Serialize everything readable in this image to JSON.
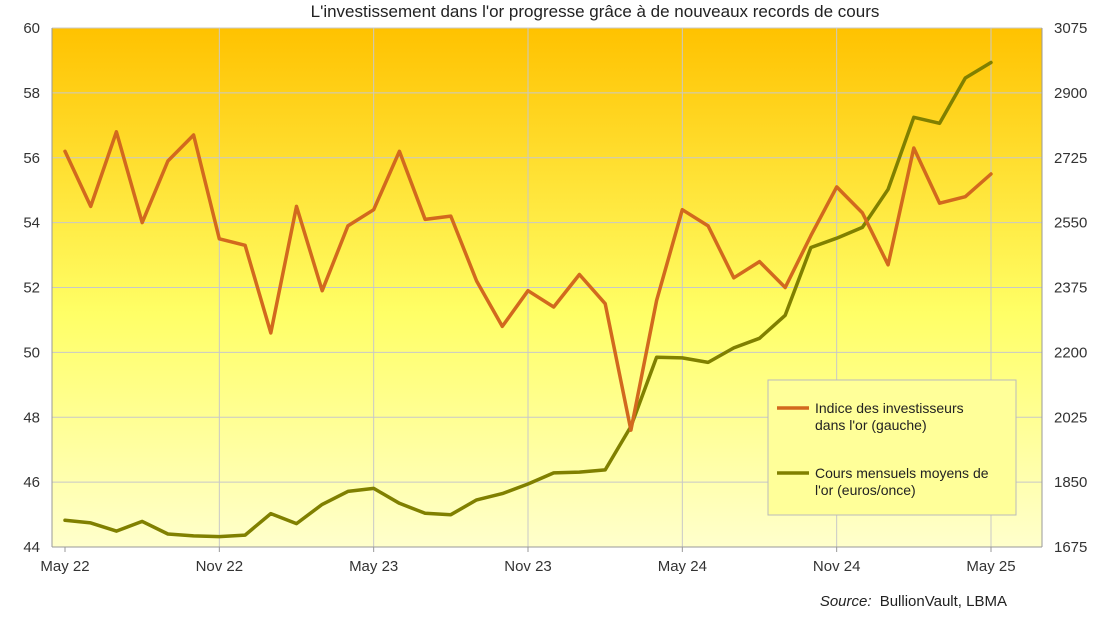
{
  "chart_data": {
    "type": "line",
    "title": "L'investissement dans l'or progresse grâce à de nouveaux records de cours",
    "source_label": "Source:",
    "source_text": "BullionVault, LBMA",
    "x_tick_labels": [
      "May 22",
      "Nov 22",
      "May 23",
      "Nov 23",
      "May 24",
      "Nov 24",
      "May 25"
    ],
    "x_start": "2022-05",
    "x_end": "2025-05",
    "y_left": {
      "range": [
        44,
        60
      ],
      "ticks": [
        44,
        46,
        48,
        50,
        52,
        54,
        56,
        58,
        60
      ]
    },
    "y_right": {
      "range": [
        1675,
        3075
      ],
      "ticks": [
        1675,
        1850,
        2025,
        2200,
        2375,
        2550,
        2725,
        2900,
        3075
      ]
    },
    "grid": true,
    "legend_position": "right",
    "series": [
      {
        "name": "Indice des investisseurs dans l'or (gauche)",
        "legend_lines": [
          "Indice des investisseurs",
          "dans l'or (gauche)"
        ],
        "axis": "left",
        "color": "#d2691e",
        "x": [
          "2022-05",
          "2022-06",
          "2022-07",
          "2022-08",
          "2022-09",
          "2022-10",
          "2022-11",
          "2022-12",
          "2023-01",
          "2023-02",
          "2023-03",
          "2023-04",
          "2023-05",
          "2023-06",
          "2023-07",
          "2023-08",
          "2023-09",
          "2023-10",
          "2023-11",
          "2023-12",
          "2024-01",
          "2024-02",
          "2024-03",
          "2024-04",
          "2024-05",
          "2024-06",
          "2024-07",
          "2024-08",
          "2024-09",
          "2024-10",
          "2024-11",
          "2024-12",
          "2025-01",
          "2025-02",
          "2025-03",
          "2025-04",
          "2025-05"
        ],
        "values": [
          56.2,
          54.5,
          56.8,
          54.0,
          55.9,
          56.7,
          53.5,
          53.3,
          50.6,
          54.5,
          51.9,
          53.9,
          54.4,
          56.2,
          54.1,
          54.2,
          52.2,
          50.8,
          51.9,
          51.4,
          52.4,
          51.5,
          47.6,
          51.6,
          54.4,
          53.9,
          52.3,
          52.8,
          52.0,
          53.6,
          55.1,
          54.3,
          52.7,
          56.3,
          54.6,
          54.8,
          55.5
        ]
      },
      {
        "name": "Cours mensuels moyens de l'or (euros/once)",
        "legend_lines": [
          "Cours mensuels moyens de",
          "l'or (euros/once)"
        ],
        "axis": "right",
        "color": "#808000",
        "x": [
          "2022-05",
          "2022-06",
          "2022-07",
          "2022-08",
          "2022-09",
          "2022-10",
          "2022-11",
          "2022-12",
          "2023-01",
          "2023-02",
          "2023-03",
          "2023-04",
          "2023-05",
          "2023-06",
          "2023-07",
          "2023-08",
          "2023-09",
          "2023-10",
          "2023-11",
          "2023-12",
          "2024-01",
          "2024-02",
          "2024-03",
          "2024-04",
          "2024-05",
          "2024-06",
          "2024-07",
          "2024-08",
          "2024-09",
          "2024-10",
          "2024-11",
          "2024-12",
          "2025-01",
          "2025-02",
          "2025-03",
          "2025-04",
          "2025-05"
        ],
        "values": [
          1747,
          1740,
          1718,
          1744,
          1710,
          1705,
          1703,
          1707,
          1765,
          1738,
          1790,
          1825,
          1833,
          1793,
          1766,
          1762,
          1802,
          1819,
          1845,
          1875,
          1877,
          1883,
          2000,
          2187,
          2185,
          2173,
          2212,
          2238,
          2300,
          2483,
          2508,
          2537,
          2640,
          2834,
          2818,
          2940,
          2982
        ]
      }
    ]
  }
}
